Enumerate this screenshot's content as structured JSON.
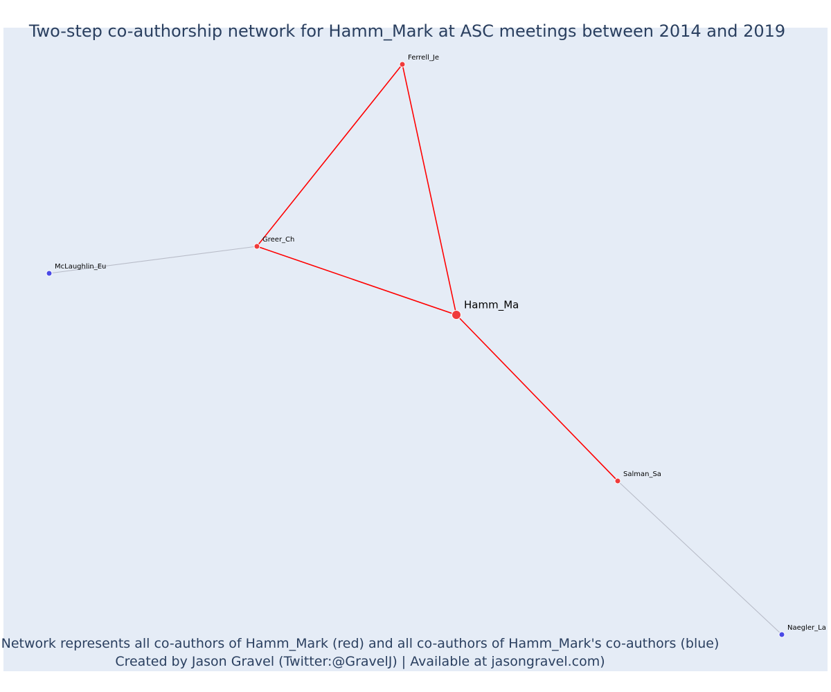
{
  "title": "Two-step co-authorship network for Hamm_Mark at ASC meetings between 2014 and 2019",
  "footnote": {
    "line1": "Network represents all co-authors of Hamm_Mark (red) and all co-authors of Hamm_Mark's co-authors (blue)",
    "line2": "Created by Jason Gravel (Twitter:@GravelJ) | Available at jasongravel.com)"
  },
  "colors": {
    "plot_background": "#e5ecf6",
    "coauthor_node": "#ef3b3b",
    "second_step_node": "#4a4ae6",
    "coauthor_edge": "#ff0000",
    "second_step_edge": "#b8bcc8",
    "node_outline": "#ffffff",
    "title_text": "#2a3f5f"
  },
  "chart_data": {
    "type": "network",
    "nodes": [
      {
        "id": "Hamm_Ma",
        "label": "Hamm_Ma",
        "group": "focal"
      },
      {
        "id": "Ferrell_Je",
        "label": "Ferrell_Je",
        "group": "coauthor"
      },
      {
        "id": "Greer_Ch",
        "label": "Greer_Ch",
        "group": "coauthor"
      },
      {
        "id": "Salman_Sa",
        "label": "Salman_Sa",
        "group": "coauthor"
      },
      {
        "id": "McLaughlin_Eu",
        "label": "McLaughlin_Eu",
        "group": "second_step"
      },
      {
        "id": "Naegler_La",
        "label": "Naegler_La",
        "group": "second_step"
      }
    ],
    "edges": [
      {
        "source": "Hamm_Ma",
        "target": "Ferrell_Je",
        "group": "coauthor"
      },
      {
        "source": "Hamm_Ma",
        "target": "Greer_Ch",
        "group": "coauthor"
      },
      {
        "source": "Hamm_Ma",
        "target": "Salman_Sa",
        "group": "coauthor"
      },
      {
        "source": "Greer_Ch",
        "target": "Ferrell_Je",
        "group": "coauthor"
      },
      {
        "source": "Greer_Ch",
        "target": "McLaughlin_Eu",
        "group": "second_step"
      },
      {
        "source": "Salman_Sa",
        "target": "Naegler_La",
        "group": "second_step"
      }
    ]
  }
}
